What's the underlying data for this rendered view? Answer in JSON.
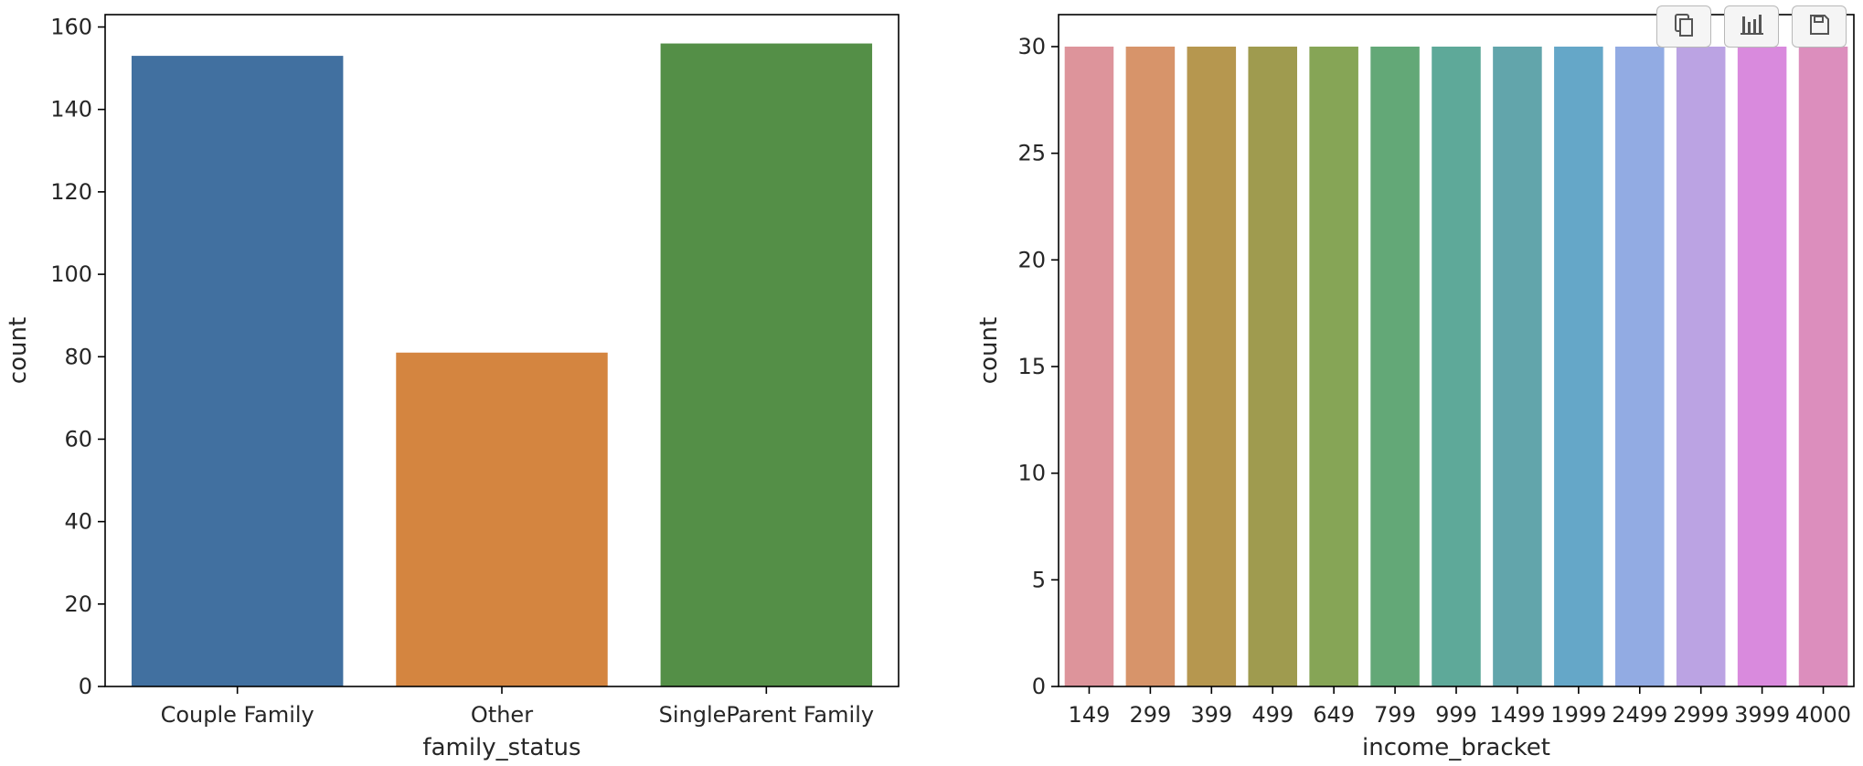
{
  "chart_data": [
    {
      "type": "bar",
      "categories": [
        "Couple Family",
        "Other",
        "SingleParent Family"
      ],
      "values": [
        153,
        81,
        156
      ],
      "colors": [
        "#4170a0",
        "#d48540",
        "#548f47"
      ],
      "xlabel": "family_status",
      "ylabel": "count",
      "ylim": [
        0,
        163
      ],
      "yticks": [
        0,
        20,
        40,
        60,
        80,
        100,
        120,
        140,
        160
      ],
      "grid": false,
      "legend": "none"
    },
    {
      "type": "bar",
      "categories": [
        "149",
        "299",
        "399",
        "499",
        "649",
        "799",
        "999",
        "1499",
        "1999",
        "2499",
        "2999",
        "3999",
        "4000"
      ],
      "values": [
        30,
        30,
        30,
        30,
        30,
        30,
        30,
        30,
        30,
        30,
        30,
        30,
        30
      ],
      "colors": [
        "#dd949b",
        "#d7946a",
        "#b6974f",
        "#9f9b4f",
        "#86a556",
        "#63a877",
        "#5ea999",
        "#62a5ab",
        "#65a7c8",
        "#92abe3",
        "#bba3e3",
        "#d98add",
        "#dc8ebd"
      ],
      "xlabel": "income_bracket",
      "ylabel": "count",
      "ylim": [
        0,
        31.5
      ],
      "yticks": [
        0,
        5,
        10,
        15,
        20,
        25,
        30
      ],
      "grid": false,
      "legend": "none"
    }
  ],
  "toolbar": {
    "buttons": [
      {
        "icon": "copy-icon"
      },
      {
        "icon": "bar-chart-icon"
      },
      {
        "icon": "save-icon"
      }
    ]
  }
}
